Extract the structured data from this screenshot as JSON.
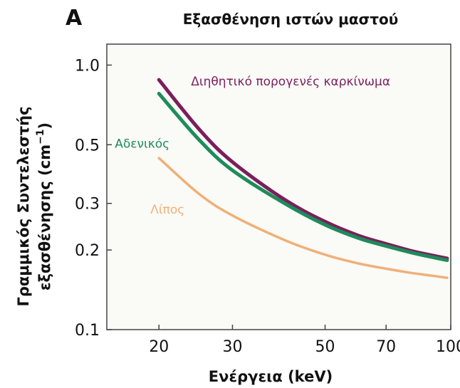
{
  "panel_label": "A",
  "colors": {
    "Διηθητικό πορογενές καρκίνωμα": "#7a1f5c",
    "Αδενικός": "#1e8c5a",
    "Λίπος": "#f0b077"
  },
  "chart_data": {
    "type": "line",
    "title": "Εξασθένηση ιστών μαστού",
    "xlabel": "Ενέργεια (keV)",
    "ylabel_line1": "Γραμμικός Συντελεστής",
    "ylabel_line2": "εξασθένησης (cm",
    "ylabel_unit_sup": "−1",
    "ylabel_close": ")",
    "x_scale": "log",
    "y_scale": "log",
    "xlim": [
      15,
      100
    ],
    "ylim": [
      0.1,
      1.2
    ],
    "x_ticks": [
      20,
      30,
      50,
      70,
      100
    ],
    "x_tick_labels": [
      "20",
      "30",
      "50",
      "70",
      "100"
    ],
    "y_ticks": [
      0.1,
      0.2,
      0.3,
      0.5,
      1.0
    ],
    "y_tick_labels": [
      "0.1",
      "0.2",
      "0.3",
      "0.5",
      "1.0"
    ],
    "grid": false,
    "series": [
      {
        "name": "Διηθητικό πορογενές καρκίνωμα",
        "x": [
          20,
          25,
          30,
          40,
          50,
          60,
          70,
          80,
          90,
          98
        ],
        "y": [
          0.88,
          0.57,
          0.43,
          0.31,
          0.256,
          0.227,
          0.211,
          0.199,
          0.191,
          0.186
        ]
      },
      {
        "name": "Αδενικός",
        "x": [
          20,
          25,
          30,
          40,
          50,
          60,
          70,
          80,
          90,
          98
        ],
        "y": [
          0.78,
          0.52,
          0.4,
          0.3,
          0.249,
          0.222,
          0.207,
          0.196,
          0.188,
          0.183
        ]
      },
      {
        "name": "Λίπος",
        "x": [
          20,
          25,
          30,
          40,
          50,
          60,
          70,
          80,
          90,
          98
        ],
        "y": [
          0.445,
          0.325,
          0.27,
          0.218,
          0.192,
          0.178,
          0.17,
          0.164,
          0.16,
          0.157
        ]
      }
    ]
  }
}
